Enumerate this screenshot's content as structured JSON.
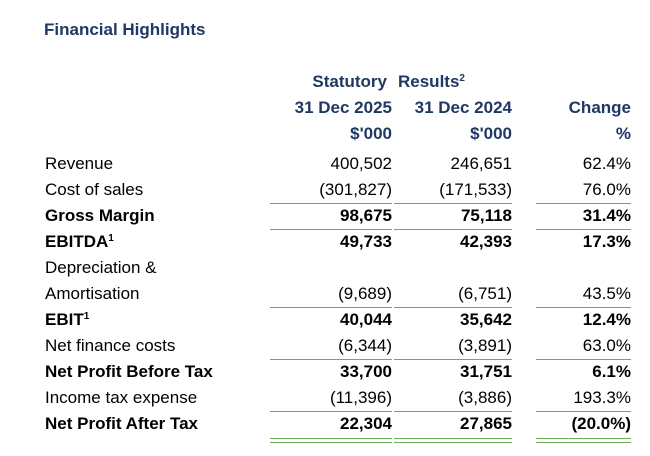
{
  "title": "Financial Highlights",
  "header": {
    "group_left": "Statutory",
    "group_right": "Results",
    "group_sup": "2",
    "col1_date": "31 Dec 2025",
    "col2_date": "31 Dec 2024",
    "col3_label": "Change",
    "col1_unit": "$'000",
    "col2_unit": "$'000",
    "col3_unit": "%"
  },
  "rows": [
    {
      "label": "Revenue",
      "sup": "",
      "v2025": "400,502",
      "v2024": "246,651",
      "change": "62.4%",
      "bold": false
    },
    {
      "label": "Cost of sales",
      "sup": "",
      "v2025": "(301,827)",
      "v2024": "(171,533)",
      "change": "76.0%",
      "bold": false
    },
    {
      "label": "Gross Margin",
      "sup": "",
      "v2025": "98,675",
      "v2024": "75,118",
      "change": "31.4%",
      "bold": true
    },
    {
      "label": "EBITDA",
      "sup": "1",
      "v2025": "49,733",
      "v2024": "42,393",
      "change": "17.3%",
      "bold": true
    },
    {
      "label": "Depreciation &",
      "sup": "",
      "v2025": "",
      "v2024": "",
      "change": "",
      "bold": false
    },
    {
      "label": "Amortisation",
      "sup": "",
      "v2025": "(9,689)",
      "v2024": "(6,751)",
      "change": "43.5%",
      "bold": false
    },
    {
      "label": "EBIT",
      "sup": "1",
      "v2025": "40,044",
      "v2024": "35,642",
      "change": "12.4%",
      "bold": true
    },
    {
      "label": "Net finance costs",
      "sup": "",
      "v2025": "(6,344)",
      "v2024": "(3,891)",
      "change": "63.0%",
      "bold": false
    },
    {
      "label": "Net Profit Before Tax",
      "sup": "",
      "v2025": "33,700",
      "v2024": "31,751",
      "change": "6.1%",
      "bold": true
    },
    {
      "label": "Income tax expense",
      "sup": "",
      "v2025": "(11,396)",
      "v2024": "(3,886)",
      "change": "193.3%",
      "bold": false
    },
    {
      "label": "Net Profit After Tax",
      "sup": "",
      "v2025": "22,304",
      "v2024": "27,865",
      "change": "(20.0%)",
      "bold": true
    }
  ],
  "colors": {
    "heading": "#1f3864",
    "rule": "#6faa5d",
    "text": "#000000"
  }
}
